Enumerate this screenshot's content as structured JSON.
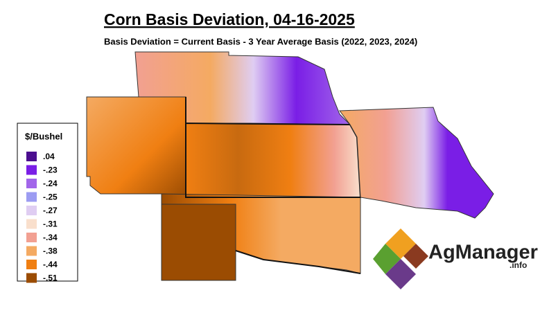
{
  "header": {
    "title": "Corn Basis Deviation, 04-16-2025",
    "subtitle": "Basis Deviation = Current Basis - 3 Year Average Basis (2022, 2023, 2024)"
  },
  "legend": {
    "title": "$/Bushel",
    "items": [
      {
        "label": ".04",
        "color": "#4b0e8f"
      },
      {
        "label": "-.23",
        "color": "#7a1ee6"
      },
      {
        "label": "-.24",
        "color": "#a266ea"
      },
      {
        "label": "-.25",
        "color": "#9c9cf2"
      },
      {
        "label": "-.27",
        "color": "#dfcdf2"
      },
      {
        "label": "-.31",
        "color": "#f9dfcc"
      },
      {
        "label": "-.34",
        "color": "#f2a092"
      },
      {
        "label": "-.38",
        "color": "#f4aa62"
      },
      {
        "label": "-.44",
        "color": "#f07f12"
      },
      {
        "label": "-.51",
        "color": "#9b4c02"
      }
    ]
  },
  "logo": {
    "name": "AgManager",
    "suffix": ".info"
  }
}
